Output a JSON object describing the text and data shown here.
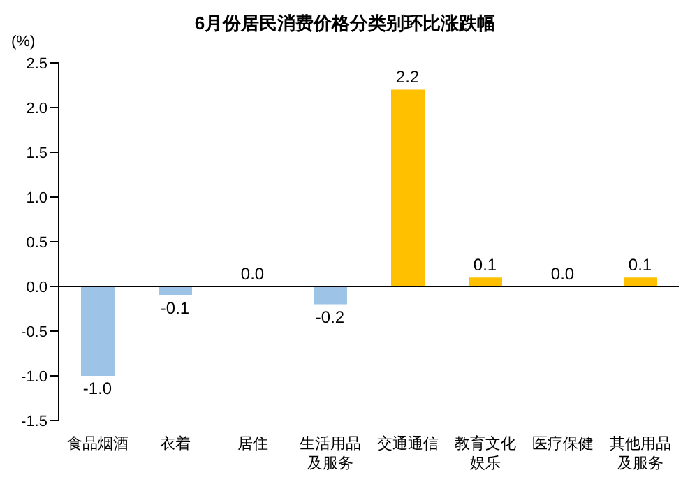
{
  "chart_data": {
    "type": "bar",
    "title": "6月份居民消费价格分类别环比涨跌幅",
    "ylabel": "(%)",
    "categories": [
      "食品烟酒",
      "衣着",
      "居住",
      "生活用品及服务",
      "交通通信",
      "教育文化娱乐",
      "医疗保健",
      "其他用品及服务"
    ],
    "values": [
      -1.0,
      -0.1,
      0.0,
      -0.2,
      2.2,
      0.1,
      0.0,
      0.1
    ],
    "value_labels": [
      "-1.0",
      "-0.1",
      "0.0",
      "-0.2",
      "2.2",
      "0.1",
      "0.0",
      "0.1"
    ],
    "colors": [
      "#9dc3e6",
      "#9dc3e6",
      "#9dc3e6",
      "#9dc3e6",
      "#ffc000",
      "#ffc000",
      "#ffc000",
      "#ffc000"
    ],
    "ylim": [
      -1.5,
      2.5
    ],
    "yticks": [
      {
        "value": -1.5,
        "label": "-1.5"
      },
      {
        "value": -1.0,
        "label": "-1.0"
      },
      {
        "value": -0.5,
        "label": "-0.5"
      },
      {
        "value": 0,
        "label": "0.0"
      },
      {
        "value": 0.5,
        "label": "0.5"
      },
      {
        "value": 1.0,
        "label": "1.0"
      },
      {
        "value": 1.5,
        "label": "1.5"
      },
      {
        "value": 2.0,
        "label": "2.0"
      },
      {
        "value": 2.5,
        "label": "2.5"
      }
    ],
    "ref_lines": [
      {
        "axis": "y",
        "value": 0,
        "color": "#000000"
      }
    ],
    "grid": false,
    "legend": false
  }
}
